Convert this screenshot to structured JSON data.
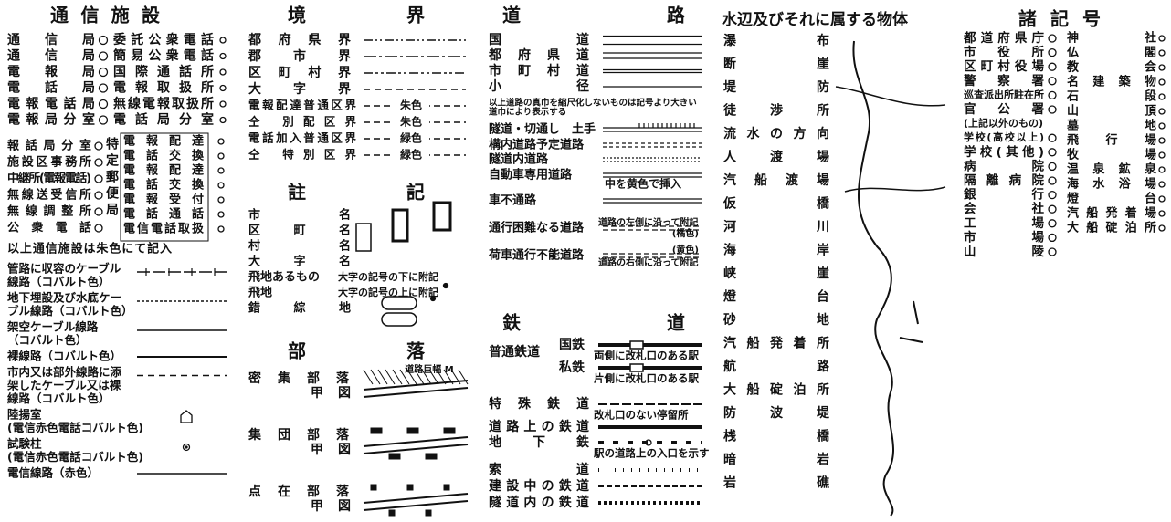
{
  "communication": {
    "title": "通信施設",
    "rows": [
      [
        "通信局",
        "委託公衆電話"
      ],
      [
        "通信局",
        "簡易公衆電話"
      ],
      [
        "電報局",
        "国際通話所"
      ],
      [
        "電話局",
        "電報取扱所"
      ],
      [
        "電報電話局",
        "無線電報取扱所"
      ],
      [
        "電報局分室",
        "電話局分室"
      ]
    ],
    "rows2_left": [
      "報話局分室",
      "施設区事務所",
      "中継所(電報電話)",
      "無線送受信所",
      "無線調整所",
      "公衆電話"
    ],
    "specific": "特定郵便局",
    "rows2_right": [
      "電報配達",
      "電話交換",
      "電報配達",
      "電話交換",
      "電報受付",
      "電話通話",
      "電信電話取扱"
    ],
    "note": "以上通信施設は朱色にて記入",
    "lines": [
      [
        "管路に収容のケーブル",
        "線路（コバルト色）"
      ],
      [
        "地下埋設及び水底ケー",
        "ブル線路（コバルト色）"
      ],
      [
        "架空ケーブル線路",
        "（コバルト色）"
      ],
      [
        "裸線路（コバルト色）"
      ],
      [
        "市内又は部外線路に添",
        "架したケーブル又は裸",
        "線路（コバルト色）"
      ],
      [
        "陸揚室",
        "(電信赤色電話コバルト色)"
      ],
      [
        "試験柱",
        "(電信赤色電話コバルト色)"
      ],
      [
        "電信線路（赤色）"
      ]
    ]
  },
  "boundaries": {
    "title": "境界",
    "items": [
      {
        "label": "都府県界"
      },
      {
        "label": "郡市界"
      },
      {
        "label": "区町村界"
      },
      {
        "label": "大字界"
      },
      {
        "label": "電報配達普通区界",
        "note": "朱色"
      },
      {
        "label": "仝 別配区界",
        "note": "朱色"
      },
      {
        "label": "電話加入普通区界",
        "note": "緑色"
      },
      {
        "label": "仝 特別区界",
        "note": "緑色"
      }
    ]
  },
  "annotations": {
    "title": "註記",
    "items": [
      {
        "label": "市名"
      },
      {
        "label": "区町名"
      },
      {
        "label": "村名"
      },
      {
        "label": "大字名"
      },
      {
        "label": "飛地あるもの",
        "note": "大字の記号の下に附記"
      },
      {
        "label": "飛地",
        "note": "大字の記号の上に附記"
      },
      {
        "label": "錯綜地"
      }
    ]
  },
  "settlements": {
    "title": "部落",
    "items": [
      {
        "label": "密集部落",
        "sub": "甲図"
      },
      {
        "label": "集団部落",
        "sub": "甲図"
      },
      {
        "label": "点在部落",
        "sub": "甲図"
      }
    ],
    "road_width": "道路巨幅 M"
  },
  "roads": {
    "title": "道路",
    "items": [
      {
        "label": "国道"
      },
      {
        "label": "都府県道"
      },
      {
        "label": "市町村道"
      },
      {
        "label": "小径"
      }
    ],
    "note": [
      "以上道路の真巾を縮尺化しないものは記号より大きい",
      "道巾により表示する"
    ],
    "items2": [
      {
        "label": "隧道・切通し　土手"
      },
      {
        "label": "構内道路予定道路"
      },
      {
        "label": "隧道内道路"
      },
      {
        "label": "自動車専用道路",
        "note": "中を黄色で挿入"
      },
      {
        "label": "車不通路"
      },
      {
        "label": "通行困難なる道路",
        "note": "道路の左側に沿って附記",
        "color": "(橘色)"
      },
      {
        "label": "荷車通行不能道路",
        "note": "道路の右側に沿って附記",
        "color": "(黄色)"
      }
    ]
  },
  "railways": {
    "title": "鉄道",
    "group": "普通鉄道",
    "items": [
      {
        "label": "国鉄",
        "note": "両側に改札口のある駅"
      },
      {
        "label": "私鉄",
        "note": "片側に改札口のある駅"
      },
      {
        "label": "特殊鉄道",
        "note": "改札口のない停留所"
      },
      {
        "label": "道路上の鉄道"
      },
      {
        "label": "地下鉄",
        "note": "駅の道路上の入口を示す"
      },
      {
        "label": "索道"
      },
      {
        "label": "建設中の鉄道"
      },
      {
        "label": "隧道内の鉄道"
      }
    ]
  },
  "waters": {
    "title": "水辺及びそれに属する物体",
    "items": [
      "瀑布",
      "断崖",
      "堤防",
      "徒渉所",
      "流水の方向",
      "人渡場",
      "汽船渡場",
      "仮橋",
      "河川",
      "海岸",
      "峡崖",
      "燈台",
      "砂地",
      "汽船発着所",
      "航路",
      "大船碇泊所",
      "防波堤",
      "桟橋",
      "暗岩",
      "岩礁"
    ]
  },
  "symbols": {
    "title": "諸記号",
    "left": [
      "都道府県庁",
      "市役所",
      "区町村役場",
      "警察署",
      "巡査派出所駐在所",
      "官公署",
      "(上記以外のもの)",
      "学校(高校以上)",
      "学校(其他)",
      "病院",
      "隔離病院",
      "銀行",
      "会社",
      "工場",
      "市場",
      "山陵"
    ],
    "right": [
      "神社",
      "仏閣",
      "教会",
      "名建築物",
      "石段",
      "山頂",
      "墓地",
      "飛行場",
      "牧場",
      "温泉鉱泉",
      "海水浴場",
      "燈台",
      "汽船発着場",
      "大船碇泊所"
    ]
  }
}
